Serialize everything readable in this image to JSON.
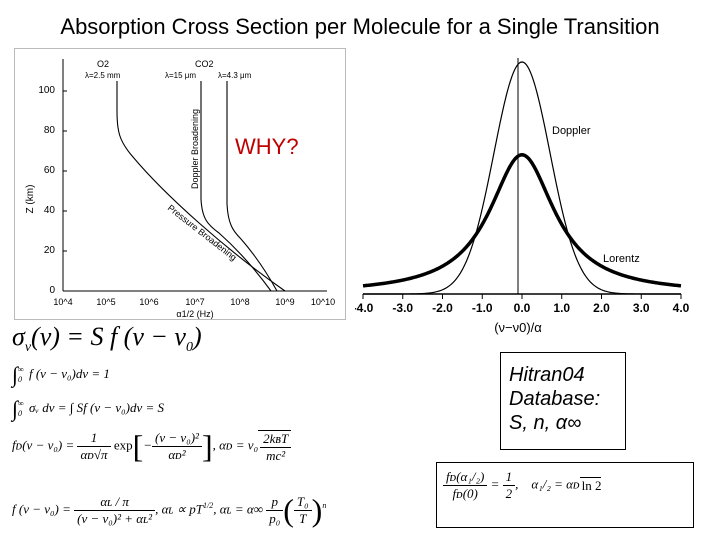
{
  "title": "Absorption Cross Section per Molecule  for a Single Transition",
  "annotation": "WHY?",
  "left_figure": {
    "top_labels": [
      "O2",
      "λ=2.5 mm",
      "CO2",
      "λ=15 μm",
      "λ=4.3 μm"
    ],
    "curve_labels": [
      "Doppler Broadening",
      "Pressure Broadening"
    ],
    "ylabel": "Z (km)",
    "xlabel": "α1/2 (Hz)",
    "y_ticks": [
      "0",
      "20",
      "40",
      "60",
      "80",
      "100"
    ],
    "x_ticks": [
      "10^4",
      "10^5",
      "10^6",
      "10^7",
      "10^8",
      "10^9",
      "10^10"
    ]
  },
  "right_figure": {
    "x_ticks": [
      "-4.0",
      "-3.0",
      "-2.0",
      "-1.0",
      "0.0",
      "1.0",
      "2.0",
      "3.0",
      "4.0"
    ],
    "xlabel": "(ν−ν0)/α",
    "curve_labels": [
      "Doppler",
      "Lorentz"
    ]
  },
  "chart_data": {
    "type": "line",
    "x": [
      -4.0,
      -3.0,
      -2.0,
      -1.0,
      0.0,
      1.0,
      2.0,
      3.0,
      4.0
    ],
    "xlabel": "(ν−ν0)/α",
    "series": [
      {
        "name": "Doppler",
        "peak": 1.0,
        "values": [
          0.0,
          0.0,
          0.02,
          0.37,
          1.0,
          0.37,
          0.02,
          0.0,
          0.0
        ]
      },
      {
        "name": "Lorentz",
        "peak": 0.6,
        "values": [
          0.035,
          0.06,
          0.12,
          0.3,
          0.6,
          0.3,
          0.12,
          0.06,
          0.035
        ]
      }
    ]
  },
  "hitran": {
    "line1": "Hitran04",
    "line2": "Database:",
    "line3": "S, n,  α∞"
  },
  "equations": {
    "sigma_lhs": "σ",
    "sigma_sub": "v",
    "sigma_rest": "(ν) = S  f (ν − ν",
    "zero": "0",
    "close": ")",
    "norm_rest": " f (ν − ν₀)dν = 1",
    "integ_rest": " σᵥ dν = ∫ Sf (ν − ν₀)dν = S",
    "lim_top": "∞",
    "lim_bot": "0",
    "fd_lhs": "fᴅ(ν − ν₀) =",
    "fd_num": "1",
    "fd_den": "αᴅ√π",
    "exp": "exp",
    "fd_inner_num": "(ν − ν₀)²",
    "fd_inner_den": "αᴅ²",
    "alpha_d": ",   αᴅ = ν₀",
    "ad_num": "2kʙT",
    "ad_den": "mc²",
    "fl_lhs": "f (ν − ν₀) =",
    "fl_num": "αʟ / π",
    "fl_den": "(ν − ν₀)² + αʟ²",
    "alpha_l_prop": ",  αʟ ∝ pT",
    "exp_half": "1/2",
    "alpha_l_eq": ",  αʟ = α∞",
    "p_num": "p",
    "p_den": "p₀",
    "t_num": "T₀",
    "t_den": "T",
    "n_exp": "n"
  },
  "ratio": {
    "lhs_num": "fᴅ(α₁/₂)",
    "lhs_den": "fᴅ(0)",
    "eq_half": "=",
    "half_num": "1",
    "half_den": "2",
    "comma": ",",
    "rhs": "α₁/₂ = αᴅ",
    "ln2": "ln 2"
  }
}
